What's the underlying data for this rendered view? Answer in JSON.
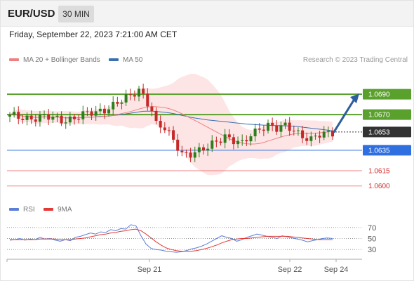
{
  "header": {
    "symbol": "EUR/USD",
    "interval": "30 MIN"
  },
  "datetime": "Friday, September 22, 2023 7:21:00 AM CET",
  "legend": {
    "bb_label": "MA 20 + Bollinger Bands",
    "ma50_label": "MA 50",
    "credit": "Research © 2023 Trading Central"
  },
  "rsi_legend": {
    "rsi_label": "RSI",
    "ma9_label": "9MA"
  },
  "colors": {
    "candle_up": "#2e7d1e",
    "candle_down": "#c62828",
    "bollinger_fill": "#fde0e0",
    "ma20": "#f08080",
    "ma50": "#3a6fb0",
    "resistance": "#5aa02c",
    "pivot": "#2f6fe0",
    "support": "#f08080",
    "current": "#333333",
    "arrow": "#2e5e9e",
    "rsi": "#5b7fd6",
    "rsi_ma": "#e53935"
  },
  "chart_data": [
    {
      "type": "candlestick",
      "title": "EUR/USD",
      "ylim": [
        1.0586,
        1.0717
      ],
      "levels": [
        {
          "value": 1.069,
          "label": "1.0690",
          "role": "resistance"
        },
        {
          "value": 1.067,
          "label": "1.0670",
          "role": "resistance"
        },
        {
          "value": 1.0653,
          "label": "1.0653",
          "role": "current"
        },
        {
          "value": 1.0635,
          "label": "1.0635",
          "role": "pivot"
        },
        {
          "value": 1.0615,
          "label": "1.0615",
          "role": "support"
        },
        {
          "value": 1.06,
          "label": "1.0600",
          "role": "support"
        }
      ],
      "x_ticks": [
        "Sep 21",
        "Sep 22",
        "Sep 24"
      ],
      "arrow": {
        "from": 1.0653,
        "to": 1.069
      }
    },
    {
      "type": "line",
      "title": "RSI",
      "ylim": [
        15,
        85
      ],
      "y_ticks": [
        "70",
        "50",
        "30"
      ],
      "series": [
        {
          "name": "RSI",
          "values": [
            47,
            48,
            50,
            47,
            49,
            48,
            52,
            49,
            50,
            47,
            45,
            48,
            46,
            52,
            54,
            57,
            60,
            58,
            62,
            61,
            66,
            64,
            68,
            67,
            75,
            73,
            55,
            40,
            32,
            30,
            29,
            27,
            26,
            25,
            26,
            28,
            31,
            33,
            36,
            40,
            45,
            50,
            55,
            52,
            50,
            45,
            48,
            52,
            55,
            58,
            56,
            54,
            52,
            50,
            55,
            53,
            51,
            49,
            47,
            44,
            46,
            48,
            50,
            51,
            50
          ]
        },
        {
          "name": "9MA",
          "values": [
            48,
            48,
            48,
            48,
            48,
            48,
            49,
            49,
            49,
            49,
            48,
            48,
            48,
            49,
            50,
            51,
            53,
            55,
            57,
            58,
            60,
            61,
            63,
            64,
            66,
            67,
            64,
            58,
            51,
            44,
            38,
            33,
            30,
            28,
            27,
            27,
            27,
            28,
            30,
            32,
            35,
            38,
            42,
            45,
            48,
            49,
            50,
            50,
            51,
            52,
            53,
            54,
            54,
            54,
            54,
            54,
            53,
            52,
            51,
            50,
            49,
            48,
            48,
            48,
            48
          ]
        }
      ]
    }
  ]
}
